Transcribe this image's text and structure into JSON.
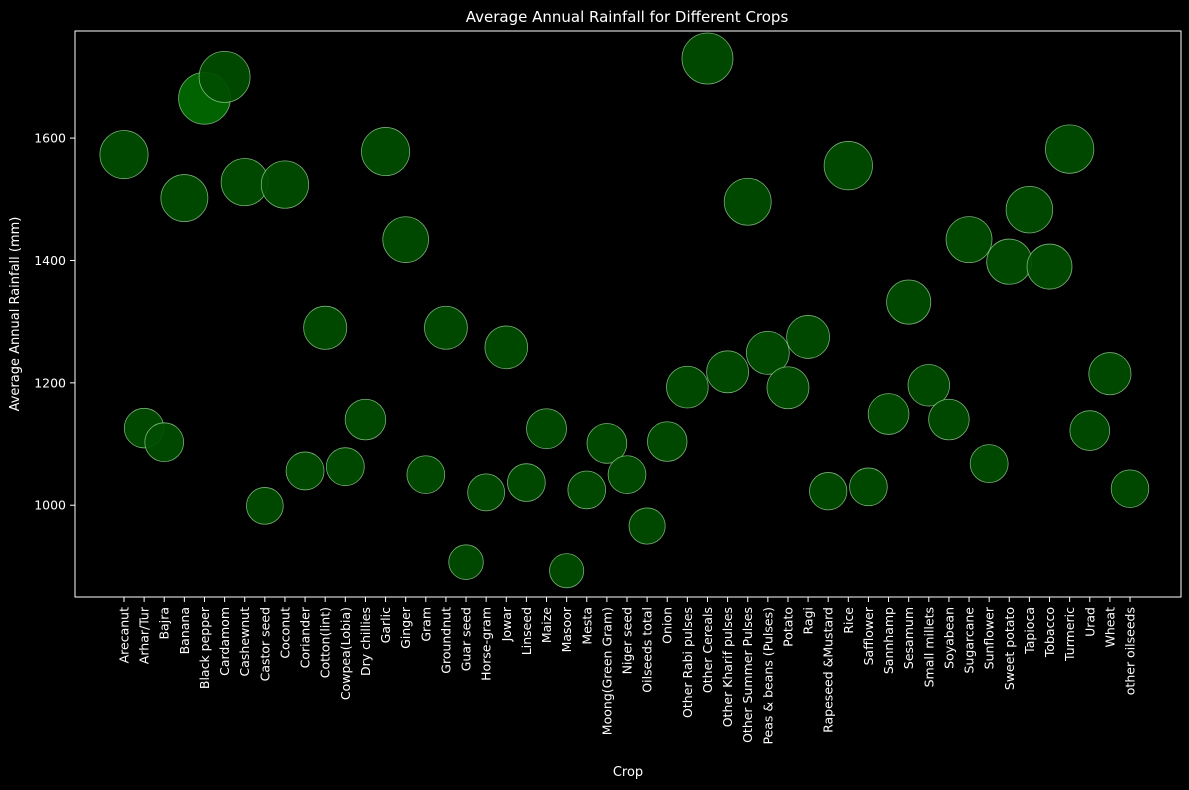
{
  "chart_data": {
    "type": "scatter",
    "title": "Average Annual Rainfall for Different Crops",
    "xlabel": "Crop",
    "ylabel": "Average Annual Rainfall (mm)",
    "ylim": [
      850,
      1775
    ],
    "yticks": [
      1000,
      1200,
      1400,
      1600
    ],
    "grid": false,
    "colors": {
      "background": "#000000",
      "marker_fill": "#004d00",
      "marker_edge": "#9fdc9f",
      "highlight_fill": "#006b00",
      "text": "#ffffff"
    },
    "categories": [
      "Arecanut",
      "Arhar/Tur",
      "Bajra",
      "Banana",
      "Black pepper",
      "Cardamom",
      "Cashewnut",
      "Castor seed",
      "Coconut ",
      "Coriander",
      "Cotton(lint)",
      "Cowpea(Lobia)",
      "Dry chillies",
      "Garlic",
      "Ginger",
      "Gram",
      "Groundnut",
      "Guar seed",
      "Horse-gram",
      "Jowar",
      "Linseed",
      "Maize",
      "Masoor",
      "Mesta",
      "Moong(Green Gram)",
      "Niger seed",
      "Oilseeds total",
      "Onion",
      "Other  Rabi pulses",
      "Other Cereals",
      "Other Kharif pulses",
      "Other Summer Pulses",
      "Peas & beans (Pulses)",
      "Potato",
      "Ragi",
      "Rapeseed &Mustard",
      "Rice",
      "Safflower",
      "Sannhamp",
      "Sesamum",
      "Small millets",
      "Soyabean",
      "Sugarcane",
      "Sunflower",
      "Sweet potato",
      "Tapioca",
      "Tobacco",
      "Turmeric",
      "Urad",
      "Wheat",
      "other oilseeds"
    ],
    "values": [
      1573,
      1126,
      1103,
      1502,
      1665,
      1700,
      1528,
      999,
      1524,
      1056,
      1290,
      1063,
      1140,
      1578,
      1434,
      1050,
      1290,
      907,
      1021,
      1258,
      1037,
      1125,
      893,
      1025,
      1101,
      1050,
      966,
      1104,
      1193,
      1730,
      1218,
      1496,
      1249,
      1192,
      1275,
      1023,
      1555,
      1030,
      1149,
      1332,
      1196,
      1140,
      1434,
      1068,
      1398,
      1483,
      1390,
      1582,
      1122,
      1215,
      1027
    ],
    "sizes": [
      1830,
      1230,
      1180,
      1740,
      2100,
      2040,
      1750,
      1060,
      1760,
      1130,
      1470,
      1140,
      1290,
      1820,
      1650,
      1120,
      1450,
      940,
      1080,
      1440,
      1120,
      1260,
      920,
      1120,
      1250,
      1120,
      1030,
      1230,
      1370,
      2050,
      1390,
      1740,
      1450,
      1380,
      1450,
      1100,
      1840,
      1120,
      1310,
      1540,
      1360,
      1290,
      1660,
      1130,
      1610,
      1700,
      1590,
      1840,
      1240,
      1400,
      1110
    ],
    "highlight": [
      "Black pepper"
    ]
  }
}
